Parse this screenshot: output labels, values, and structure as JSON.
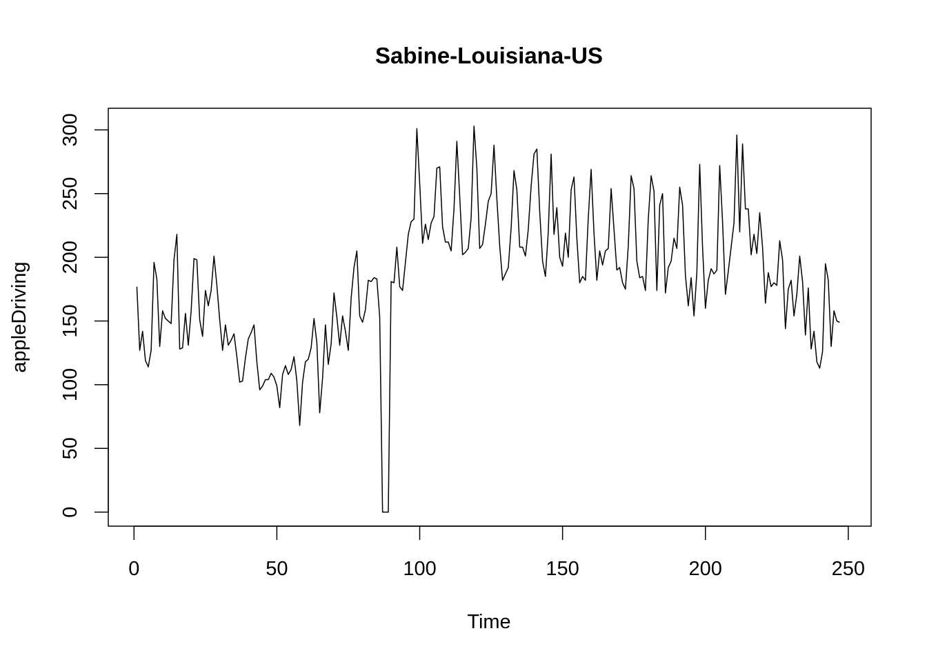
{
  "chart_data": {
    "type": "line",
    "title": "Sabine-Louisiana-US",
    "xlabel": "Time",
    "ylabel": "appleDriving",
    "xlim": [
      -9,
      258
    ],
    "ylim": [
      -11,
      317
    ],
    "xticks": [
      0,
      50,
      100,
      150,
      200,
      250
    ],
    "yticks": [
      0,
      50,
      100,
      150,
      200,
      250,
      300
    ],
    "grid": false,
    "series": [
      {
        "x_start": 1,
        "values": [
          177,
          127,
          142,
          119,
          114,
          127,
          196,
          183,
          130,
          158,
          152,
          150,
          148,
          198,
          218,
          128,
          129,
          156,
          131,
          158,
          199,
          198,
          151,
          138,
          174,
          162,
          174,
          201,
          178,
          151,
          127,
          147,
          131,
          135,
          140,
          122,
          102,
          103,
          121,
          136,
          141,
          147,
          118,
          96,
          99,
          104,
          104,
          109,
          106,
          99,
          82,
          108,
          115,
          108,
          112,
          122,
          103,
          68,
          102,
          118,
          120,
          129,
          152,
          133,
          78,
          105,
          147,
          116,
          132,
          172,
          153,
          131,
          154,
          142,
          127,
          168,
          192,
          205,
          154,
          149,
          159,
          182,
          181,
          184,
          183,
          153,
          0,
          0,
          0,
          181,
          180,
          208,
          177,
          174,
          196,
          218,
          228,
          230,
          301,
          258,
          211,
          226,
          214,
          227,
          232,
          270,
          271,
          224,
          212,
          212,
          205,
          238,
          291,
          248,
          202,
          204,
          207,
          231,
          303,
          270,
          207,
          210,
          226,
          244,
          250,
          288,
          246,
          209,
          182,
          187,
          192,
          223,
          268,
          253,
          208,
          208,
          201,
          222,
          256,
          281,
          285,
          236,
          197,
          185,
          220,
          281,
          218,
          239,
          200,
          193,
          219,
          200,
          253,
          263,
          215,
          180,
          185,
          182,
          231,
          269,
          219,
          182,
          205,
          194,
          205,
          207,
          254,
          222,
          190,
          192,
          180,
          175,
          209,
          264,
          254,
          197,
          184,
          185,
          174,
          230,
          264,
          252,
          174,
          241,
          250,
          172,
          192,
          197,
          215,
          207,
          255,
          241,
          186,
          162,
          184,
          154,
          188,
          273,
          208,
          160,
          182,
          191,
          187,
          190,
          272,
          228,
          171,
          189,
          208,
          227,
          296,
          220,
          289,
          238,
          238,
          202,
          218,
          203,
          235,
          208,
          164,
          188,
          177,
          180,
          178,
          213,
          198,
          144,
          175,
          182,
          154,
          171,
          201,
          181,
          139,
          176,
          128,
          142,
          118,
          113,
          126,
          195,
          182,
          130,
          158,
          150,
          149
        ]
      }
    ]
  }
}
